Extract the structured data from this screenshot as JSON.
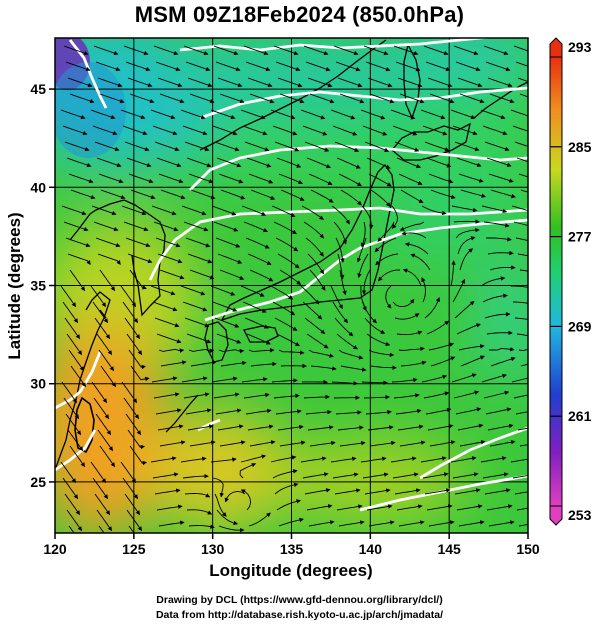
{
  "title": "MSM 09Z18Feb2024 (850.0hPa)",
  "map": {
    "xlabel": "Longitude (degrees)",
    "ylabel": "Latitude  (degrees)",
    "lon_range": [
      120,
      150
    ],
    "lat_range": [
      22.4,
      47.6
    ],
    "lon_ticks": [
      "120",
      "125",
      "130",
      "135",
      "140",
      "145",
      "150"
    ],
    "lat_ticks": [
      "25",
      "30",
      "35",
      "40",
      "45"
    ],
    "grid": true
  },
  "colorbar": {
    "ticks": [
      "293",
      "285",
      "277",
      "269",
      "261",
      "253"
    ],
    "range": [
      253,
      293
    ]
  },
  "credits": {
    "line1": "Drawing by DCL (https://www.gfd-dennou.org/library/dcl/)",
    "line2": "Data from http://database.rish.kyoto-u.ac.jp/arch/jmadata/"
  },
  "colors": {
    "cold": "#7020c0",
    "cool": "#20c0d0",
    "mid": "#20c020",
    "warm": "#d8d020",
    "hot": "#f08018",
    "coast": "#000000",
    "isotherm": "#ffffff"
  }
}
